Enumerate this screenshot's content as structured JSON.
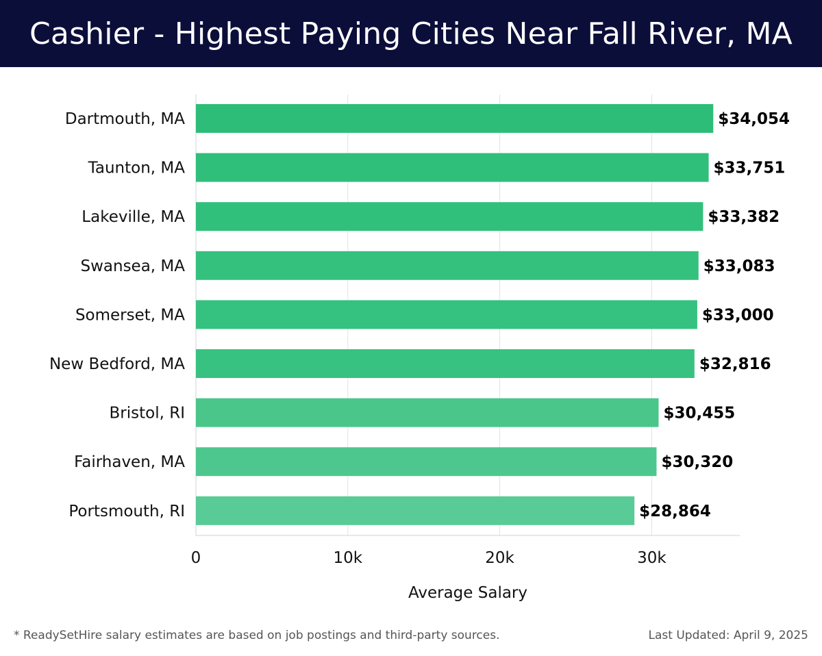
{
  "title": "Cashier - Highest Paying Cities Near Fall River, MA",
  "footer": {
    "note": "* ReadySetHire salary estimates are based on job postings and third-party sources.",
    "updated": "Last Updated: April 9, 2025"
  },
  "colors": {
    "title_bg": "#0c0e3a",
    "bar_colors": [
      "#2dbd78",
      "#2fbf7a",
      "#31c07c",
      "#34c17e",
      "#35c17f",
      "#38c281",
      "#4ac68b",
      "#4dc78d",
      "#59cb96"
    ]
  },
  "chart_data": {
    "type": "bar",
    "orientation": "horizontal",
    "categories": [
      "Dartmouth, MA",
      "Taunton, MA",
      "Lakeville, MA",
      "Swansea, MA",
      "Somerset, MA",
      "New Bedford, MA",
      "Bristol, RI",
      "Fairhaven, MA",
      "Portsmouth, RI"
    ],
    "values": [
      34054,
      33751,
      33382,
      33083,
      33000,
      32816,
      30455,
      30320,
      28864
    ],
    "value_labels": [
      "$34,054",
      "$33,751",
      "$33,382",
      "$33,083",
      "$33,000",
      "$32,816",
      "$30,455",
      "$30,320",
      "$28,864"
    ],
    "xlabel": "Average Salary",
    "ylabel": "",
    "xlim": [
      0,
      35800
    ],
    "xticks": [
      0,
      10000,
      20000,
      30000
    ],
    "xtick_labels": [
      "0",
      "10k",
      "20k",
      "30k"
    ],
    "grid": "vertical",
    "legend": "none"
  }
}
